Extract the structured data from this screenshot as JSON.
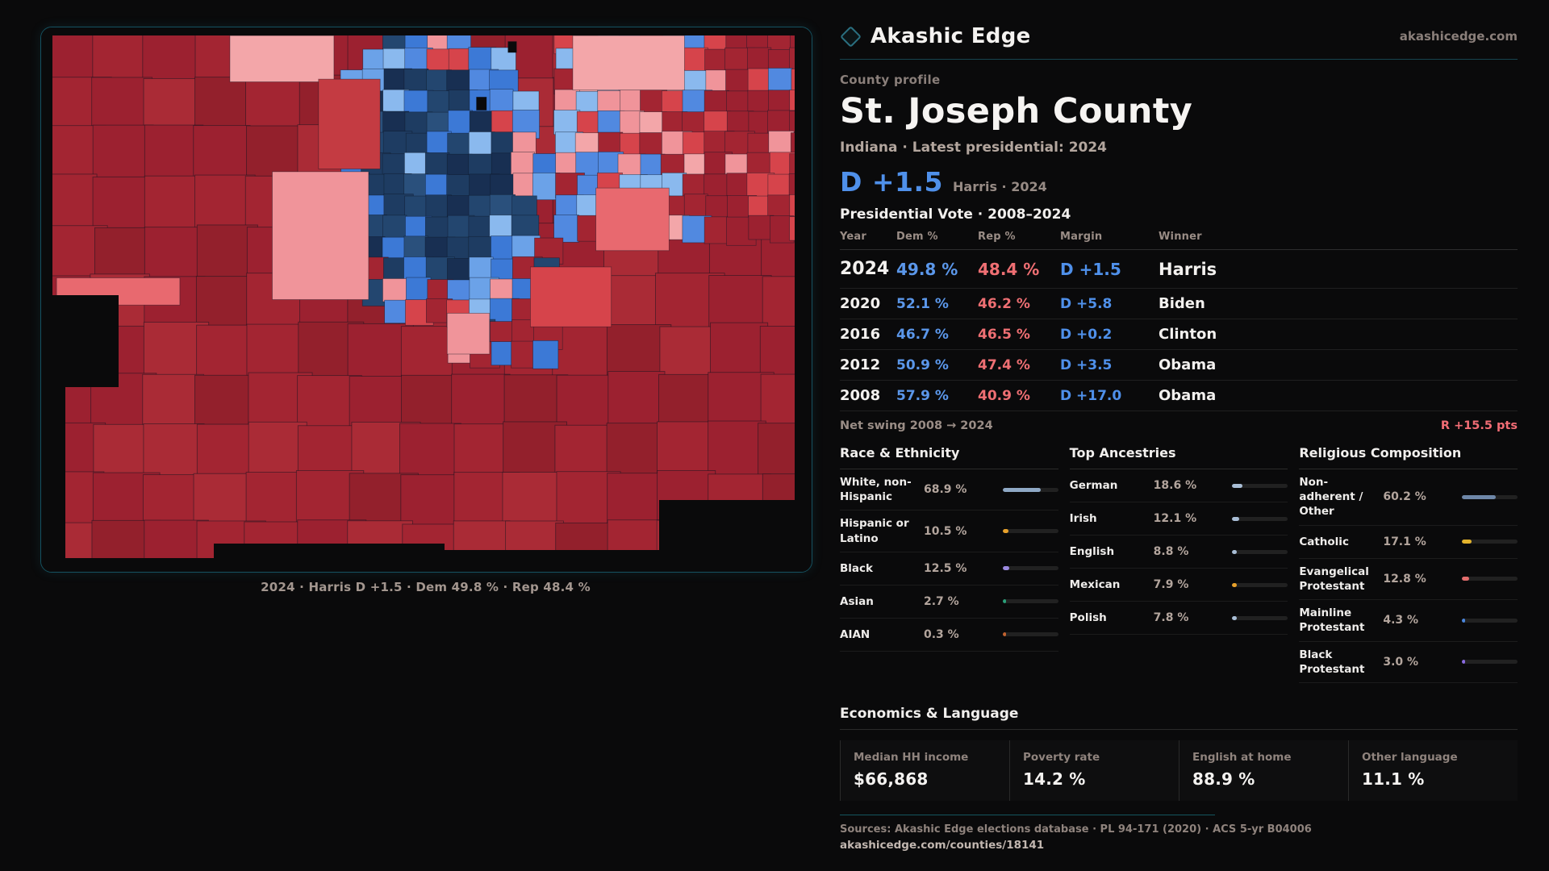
{
  "header": {
    "brand": "Akashic Edge",
    "site": "akashicedge.com"
  },
  "profile": {
    "kicker": "County profile",
    "title": "St. Joseph County",
    "subtitle": "Indiana · Latest presidential: 2024",
    "margin_value": "D +1.5",
    "margin_context": "Harris · 2024"
  },
  "vote_table": {
    "title": "Presidential Vote · 2008–2024",
    "columns": [
      "Year",
      "Dem %",
      "Rep %",
      "Margin",
      "Winner"
    ],
    "rows": [
      {
        "year": "2024",
        "dem": "49.8 %",
        "rep": "48.4 %",
        "margin": "D +1.5",
        "winner": "Harris",
        "featured": true
      },
      {
        "year": "2020",
        "dem": "52.1 %",
        "rep": "46.2 %",
        "margin": "D +5.8",
        "winner": "Biden",
        "featured": false
      },
      {
        "year": "2016",
        "dem": "46.7 %",
        "rep": "46.5 %",
        "margin": "D +0.2",
        "winner": "Clinton",
        "featured": false
      },
      {
        "year": "2012",
        "dem": "50.9 %",
        "rep": "47.4 %",
        "margin": "D +3.5",
        "winner": "Obama",
        "featured": false
      },
      {
        "year": "2008",
        "dem": "57.9 %",
        "rep": "40.9 %",
        "margin": "D +17.0",
        "winner": "Obama",
        "featured": false
      }
    ],
    "net_swing_label": "Net swing 2008 → 2024",
    "net_swing_value": "R +15.5 pts"
  },
  "demographics": {
    "sections": [
      {
        "title": "Race & Ethnicity",
        "rows": [
          {
            "label": "White, non-Hispanic",
            "value": "68.9 %",
            "pct": 68.9,
            "color": "#8fa9c6"
          },
          {
            "label": "Hispanic or Latino",
            "value": "10.5 %",
            "pct": 10.5,
            "color": "#e8a12b"
          },
          {
            "label": "Black",
            "value": "12.5 %",
            "pct": 12.5,
            "color": "#9b8ae0"
          },
          {
            "label": "Asian",
            "value": "2.7 %",
            "pct": 2.7,
            "color": "#2aa07a"
          },
          {
            "label": "AIAN",
            "value": "0.3 %",
            "pct": 0.3,
            "color": "#c2622f"
          }
        ]
      },
      {
        "title": "Top Ancestries",
        "rows": [
          {
            "label": "German",
            "value": "18.6 %",
            "pct": 18.6,
            "color": "#a9bed6"
          },
          {
            "label": "Irish",
            "value": "12.1 %",
            "pct": 12.1,
            "color": "#a9bed6"
          },
          {
            "label": "English",
            "value": "8.8 %",
            "pct": 8.8,
            "color": "#a9bed6"
          },
          {
            "label": "Mexican",
            "value": "7.9 %",
            "pct": 7.9,
            "color": "#e8a12b"
          },
          {
            "label": "Polish",
            "value": "7.8 %",
            "pct": 7.8,
            "color": "#a9bed6"
          }
        ]
      },
      {
        "title": "Religious Composition",
        "rows": [
          {
            "label": "Non-adherent / Other",
            "value": "60.2 %",
            "pct": 60.2,
            "color": "#6e87a8"
          },
          {
            "label": "Catholic",
            "value": "17.1 %",
            "pct": 17.1,
            "color": "#e3b32c"
          },
          {
            "label": "Evangelical Protestant",
            "value": "12.8 %",
            "pct": 12.8,
            "color": "#e36d6d"
          },
          {
            "label": "Mainline Protestant",
            "value": "4.3 %",
            "pct": 4.3,
            "color": "#4a86dd"
          },
          {
            "label": "Black Protestant",
            "value": "3.0 %",
            "pct": 3.0,
            "color": "#8a6ae0"
          }
        ]
      }
    ]
  },
  "economics": {
    "title": "Economics & Language",
    "stats": [
      {
        "label": "Median HH income",
        "value": "$66,868"
      },
      {
        "label": "Poverty rate",
        "value": "14.2 %"
      },
      {
        "label": "English at home",
        "value": "88.9 %"
      },
      {
        "label": "Other language",
        "value": "11.1 %"
      }
    ]
  },
  "footer": {
    "sources": "Sources: Akashic Edge elections database · PL 94-171 (2020) · ACS 5-yr B04006",
    "permalink": "akashicedge.com/counties/18141"
  },
  "map": {
    "caption": "2024 · Harris D +1.5 · Dem 49.8 % · Rep 48.4 %",
    "palette": {
      "darkred1": "#9c2130",
      "darkred2": "#a32532",
      "darkred3": "#93202c",
      "darkred4": "#aa2b36",
      "midred": "#c43b42",
      "brightred": "#d6444b",
      "salmon": "#e8696f",
      "pink": "#f0949a",
      "pink2": "#f3a6a9",
      "navy1": "#1e3c62",
      "navy2": "#23466f",
      "navy3": "#182f52",
      "navy4": "#2a507c",
      "mid1": "#3c79d6",
      "mid2": "#5189e0",
      "light1": "#8ab9ee",
      "light2": "#a2c7f2",
      "light3": "#6ba2e8",
      "black": "#0a0a0b"
    },
    "patches": [
      [
        0.245,
        0.015,
        0.135,
        0.085,
        "pink2"
      ],
      [
        0.3,
        0.265,
        0.125,
        0.235,
        "pink"
      ],
      [
        0.02,
        0.46,
        0.16,
        0.05,
        "salmon"
      ],
      [
        0.36,
        0.095,
        0.08,
        0.165,
        "midred"
      ],
      [
        0.69,
        0.015,
        0.145,
        0.1,
        "pink2"
      ],
      [
        0.72,
        0.295,
        0.095,
        0.115,
        "salmon"
      ],
      [
        0.635,
        0.44,
        0.105,
        0.11,
        "brightred"
      ],
      [
        0.527,
        0.525,
        0.055,
        0.075,
        "pink"
      ],
      [
        0.565,
        0.128,
        0.013,
        0.024,
        "black"
      ],
      [
        0.606,
        0.026,
        0.011,
        0.02,
        "black"
      ]
    ]
  }
}
